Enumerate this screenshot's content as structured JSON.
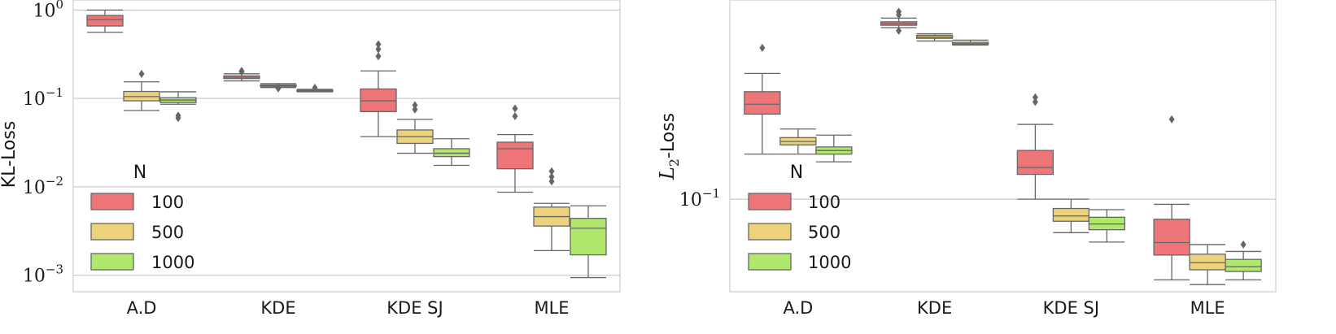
{
  "chart_data": [
    {
      "type": "box",
      "ylabel": "KL-Loss",
      "yscale": "log",
      "ylim": [
        0.00065,
        1.3
      ],
      "yticks": [
        {
          "value": 1,
          "base": "10",
          "exp": "0"
        },
        {
          "value": 0.1,
          "base": "10",
          "exp": "−1"
        },
        {
          "value": 0.01,
          "base": "10",
          "exp": "−2"
        },
        {
          "value": 0.001,
          "base": "10",
          "exp": "−3"
        }
      ],
      "categories": [
        "A.D",
        "KDE",
        "KDE SJ",
        "MLE"
      ],
      "grid": true,
      "legend": {
        "title": "N",
        "placement": "center-left"
      },
      "series": [
        {
          "name": "100",
          "color": "#ef7678",
          "boxes": [
            {
              "whislo": 0.56,
              "q1": 0.66,
              "med": 0.78,
              "q3": 0.87,
              "whishi": 1.0,
              "fliers": []
            },
            {
              "whislo": 0.158,
              "q1": 0.168,
              "med": 0.174,
              "q3": 0.18,
              "whishi": 0.19,
              "fliers": [
                0.2,
                0.205
              ]
            },
            {
              "whislo": 0.037,
              "q1": 0.071,
              "med": 0.094,
              "q3": 0.128,
              "whishi": 0.205,
              "fliers": [
                0.3,
                0.36,
                0.41
              ]
            },
            {
              "whislo": 0.0087,
              "q1": 0.016,
              "med": 0.027,
              "q3": 0.032,
              "whishi": 0.039,
              "fliers": [
                0.063,
                0.077
              ]
            }
          ]
        },
        {
          "name": "500",
          "color": "#ecd27a",
          "boxes": [
            {
              "whislo": 0.073,
              "q1": 0.094,
              "med": 0.105,
              "q3": 0.12,
              "whishi": 0.154,
              "fliers": [
                0.19
              ]
            },
            {
              "whislo": 0.133,
              "q1": 0.137,
              "med": 0.139,
              "q3": 0.142,
              "whishi": 0.147,
              "fliers": [
                0.13
              ]
            },
            {
              "whislo": 0.024,
              "q1": 0.031,
              "med": 0.037,
              "q3": 0.044,
              "whishi": 0.058,
              "fliers": [
                0.075,
                0.084
              ]
            },
            {
              "whislo": 0.0019,
              "q1": 0.0036,
              "med": 0.0046,
              "q3": 0.0059,
              "whishi": 0.0065,
              "fliers": [
                0.0115,
                0.013,
                0.015
              ]
            }
          ]
        },
        {
          "name": "1000",
          "color": "#b0e86e",
          "boxes": [
            {
              "whislo": 0.086,
              "q1": 0.09,
              "med": 0.096,
              "q3": 0.102,
              "whishi": 0.119,
              "fliers": [
                0.06,
                0.064
              ]
            },
            {
              "whislo": 0.119,
              "q1": 0.12,
              "med": 0.122,
              "q3": 0.124,
              "whishi": 0.127,
              "fliers": [
                0.132
              ]
            },
            {
              "whislo": 0.0175,
              "q1": 0.022,
              "med": 0.024,
              "q3": 0.027,
              "whishi": 0.035,
              "fliers": []
            },
            {
              "whislo": 0.00094,
              "q1": 0.0017,
              "med": 0.0034,
              "q3": 0.0044,
              "whishi": 0.0061,
              "fliers": []
            }
          ]
        }
      ]
    },
    {
      "type": "box",
      "ylabel_math": "L",
      "ylabel_sub": "2",
      "ylabel_rest": "-Loss",
      "yscale": "log",
      "ylim": [
        0.0435,
        0.6
      ],
      "yticks": [
        {
          "value": 0.1,
          "base": "10",
          "exp": "−1"
        }
      ],
      "categories": [
        "A.D",
        "KDE",
        "KDE SJ",
        "MLE"
      ],
      "grid": true,
      "legend": {
        "title": "N",
        "placement": "center-left"
      },
      "series": [
        {
          "name": "100",
          "color": "#ef7678",
          "boxes": [
            {
              "whislo": 0.15,
              "q1": 0.215,
              "med": 0.235,
              "q3": 0.263,
              "whishi": 0.31,
              "fliers": [
                0.39
              ]
            },
            {
              "whislo": 0.468,
              "q1": 0.478,
              "med": 0.485,
              "q3": 0.493,
              "whishi": 0.51,
              "fliers": [
                0.455,
                0.525,
                0.54
              ]
            },
            {
              "whislo": 0.1,
              "q1": 0.125,
              "med": 0.133,
              "q3": 0.155,
              "whishi": 0.196,
              "fliers": [
                0.24,
                0.25
              ]
            },
            {
              "whislo": 0.0484,
              "q1": 0.0605,
              "med": 0.0677,
              "q3": 0.0835,
              "whishi": 0.0955,
              "fliers": [
                0.205
              ]
            }
          ]
        },
        {
          "name": "500",
          "color": "#ecd27a",
          "boxes": [
            {
              "whislo": 0.15,
              "q1": 0.163,
              "med": 0.168,
              "q3": 0.174,
              "whishi": 0.188,
              "fliers": []
            },
            {
              "whislo": 0.415,
              "q1": 0.425,
              "med": 0.43,
              "q3": 0.437,
              "whishi": 0.443,
              "fliers": []
            },
            {
              "whislo": 0.074,
              "q1": 0.082,
              "med": 0.086,
              "q3": 0.092,
              "whishi": 0.1,
              "fliers": []
            },
            {
              "whislo": 0.0464,
              "q1": 0.053,
              "med": 0.0565,
              "q3": 0.061,
              "whishi": 0.0665,
              "fliers": []
            }
          ]
        },
        {
          "name": "1000",
          "color": "#b0e86e",
          "boxes": [
            {
              "whislo": 0.14,
              "q1": 0.15,
              "med": 0.155,
              "q3": 0.16,
              "whishi": 0.178,
              "fliers": []
            },
            {
              "whislo": 0.4,
              "q1": 0.402,
              "med": 0.405,
              "q3": 0.41,
              "whishi": 0.418,
              "fliers": []
            },
            {
              "whislo": 0.068,
              "q1": 0.076,
              "med": 0.08,
              "q3": 0.085,
              "whishi": 0.091,
              "fliers": []
            },
            {
              "whislo": 0.0484,
              "q1": 0.0522,
              "med": 0.0545,
              "q3": 0.0582,
              "whishi": 0.0625,
              "fliers": [
                0.0665
              ]
            }
          ]
        }
      ]
    }
  ]
}
